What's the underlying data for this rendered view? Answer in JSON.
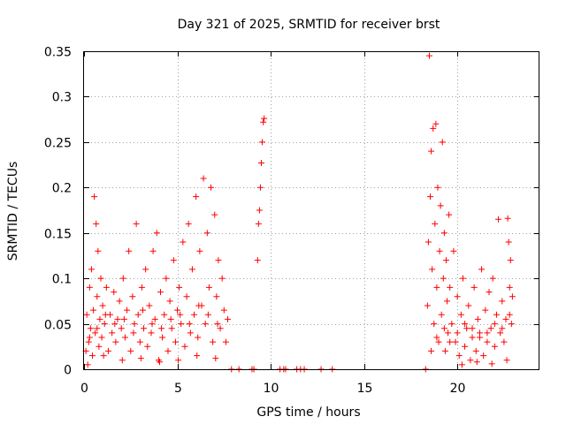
{
  "chart_data": {
    "type": "scatter",
    "title": "Day 321 of 2025, SRMTID for receiver brst",
    "xlabel": "GPS time / hours",
    "ylabel": "SRMTID / TECUs",
    "xlim": [
      0,
      24.4
    ],
    "ylim": [
      0,
      0.35
    ],
    "grid": true,
    "marker": "plus",
    "series_color": "#ff0000",
    "x_ticks": [
      0,
      5,
      10,
      15,
      20
    ],
    "x_tick_labels": [
      "0",
      "5",
      "10",
      "15",
      "20"
    ],
    "y_ticks": [
      0,
      0.05,
      0.1,
      0.15,
      0.2,
      0.25,
      0.3,
      0.35
    ],
    "y_tick_labels": [
      "0",
      "0.05",
      "0.1",
      "0.15",
      "0.2",
      "0.25",
      "0.3",
      "0.35"
    ],
    "series": [
      {
        "name": "SRMTID",
        "points": [
          [
            0.1,
            0.02
          ],
          [
            0.15,
            0.06
          ],
          [
            0.2,
            0.005
          ],
          [
            0.25,
            0.03
          ],
          [
            0.3,
            0.09
          ],
          [
            0.35,
            0.045
          ],
          [
            0.4,
            0.11
          ],
          [
            0.45,
            0.015
          ],
          [
            0.5,
            0.065
          ],
          [
            0.55,
            0.19
          ],
          [
            0.6,
            0.04
          ],
          [
            0.65,
            0.16
          ],
          [
            0.7,
            0.08
          ],
          [
            0.75,
            0.13
          ],
          [
            0.8,
            0.025
          ],
          [
            0.85,
            0.055
          ],
          [
            0.9,
            0.1
          ],
          [
            0.95,
            0.035
          ],
          [
            1.0,
            0.07
          ],
          [
            1.1,
            0.05
          ],
          [
            1.2,
            0.09
          ],
          [
            1.3,
            0.02
          ],
          [
            1.4,
            0.06
          ],
          [
            1.5,
            0.04
          ],
          [
            1.6,
            0.085
          ],
          [
            1.7,
            0.03
          ],
          [
            1.8,
            0.055
          ],
          [
            1.9,
            0.075
          ],
          [
            2.0,
            0.045
          ],
          [
            2.1,
            0.1
          ],
          [
            2.2,
            0.035
          ],
          [
            2.3,
            0.065
          ],
          [
            2.4,
            0.13
          ],
          [
            2.5,
            0.02
          ],
          [
            2.6,
            0.08
          ],
          [
            2.7,
            0.05
          ],
          [
            2.8,
            0.16
          ],
          [
            2.9,
            0.06
          ],
          [
            3.0,
            0.03
          ],
          [
            3.1,
            0.09
          ],
          [
            3.2,
            0.045
          ],
          [
            3.3,
            0.11
          ],
          [
            3.4,
            0.025
          ],
          [
            3.5,
            0.07
          ],
          [
            3.6,
            0.04
          ],
          [
            3.7,
            0.13
          ],
          [
            3.8,
            0.055
          ],
          [
            3.9,
            0.15
          ],
          [
            4.0,
            0.01
          ],
          [
            4.1,
            0.085
          ],
          [
            4.2,
            0.035
          ],
          [
            4.3,
            0.06
          ],
          [
            4.4,
            0.1
          ],
          [
            4.5,
            0.02
          ],
          [
            4.6,
            0.075
          ],
          [
            4.7,
            0.045
          ],
          [
            4.8,
            0.12
          ],
          [
            4.9,
            0.03
          ],
          [
            5.0,
            0.065
          ],
          [
            5.1,
            0.09
          ],
          [
            5.2,
            0.05
          ],
          [
            5.3,
            0.14
          ],
          [
            5.4,
            0.025
          ],
          [
            5.5,
            0.08
          ],
          [
            5.6,
            0.16
          ],
          [
            5.7,
            0.04
          ],
          [
            5.8,
            0.11
          ],
          [
            5.9,
            0.06
          ],
          [
            6.0,
            0.19
          ],
          [
            6.1,
            0.035
          ],
          [
            6.2,
            0.13
          ],
          [
            6.3,
            0.07
          ],
          [
            6.4,
            0.21
          ],
          [
            6.5,
            0.05
          ],
          [
            6.6,
            0.15
          ],
          [
            6.7,
            0.09
          ],
          [
            6.8,
            0.2
          ],
          [
            6.9,
            0.03
          ],
          [
            7.0,
            0.17
          ],
          [
            7.1,
            0.08
          ],
          [
            7.2,
            0.12
          ],
          [
            7.3,
            0.045
          ],
          [
            7.4,
            0.1
          ],
          [
            7.5,
            0.065
          ],
          [
            7.6,
            0.03
          ],
          [
            7.7,
            0.055
          ],
          [
            0.3,
            0.035
          ],
          [
            0.7,
            0.045
          ],
          [
            1.15,
            0.06
          ],
          [
            1.65,
            0.05
          ],
          [
            2.15,
            0.055
          ],
          [
            2.65,
            0.04
          ],
          [
            3.15,
            0.065
          ],
          [
            3.65,
            0.05
          ],
          [
            4.15,
            0.045
          ],
          [
            4.65,
            0.055
          ],
          [
            5.15,
            0.06
          ],
          [
            5.65,
            0.05
          ],
          [
            6.15,
            0.07
          ],
          [
            6.65,
            0.06
          ],
          [
            7.15,
            0.05
          ],
          [
            1.05,
            0.015
          ],
          [
            2.05,
            0.01
          ],
          [
            3.05,
            0.012
          ],
          [
            4.05,
            0.008
          ],
          [
            5.05,
            0.01
          ],
          [
            6.05,
            0.015
          ],
          [
            7.05,
            0.012
          ],
          [
            7.9,
            0.0
          ],
          [
            8.3,
            0.0
          ],
          [
            9.0,
            0.0
          ],
          [
            9.1,
            0.0
          ],
          [
            9.3,
            0.12
          ],
          [
            9.35,
            0.16
          ],
          [
            9.4,
            0.175
          ],
          [
            9.45,
            0.2
          ],
          [
            9.5,
            0.227
          ],
          [
            9.55,
            0.25
          ],
          [
            9.6,
            0.272
          ],
          [
            9.65,
            0.276
          ],
          [
            10.5,
            0.0
          ],
          [
            10.7,
            0.0
          ],
          [
            10.8,
            0.0
          ],
          [
            11.4,
            0.0
          ],
          [
            11.6,
            0.0
          ],
          [
            11.8,
            0.0
          ],
          [
            12.7,
            0.0
          ],
          [
            13.3,
            0.0
          ],
          [
            18.3,
            0.0
          ],
          [
            18.4,
            0.07
          ],
          [
            18.45,
            0.14
          ],
          [
            18.5,
            0.345
          ],
          [
            18.55,
            0.19
          ],
          [
            18.6,
            0.24
          ],
          [
            18.65,
            0.11
          ],
          [
            18.7,
            0.265
          ],
          [
            18.75,
            0.05
          ],
          [
            18.8,
            0.16
          ],
          [
            18.85,
            0.27
          ],
          [
            18.9,
            0.09
          ],
          [
            18.95,
            0.2
          ],
          [
            19.0,
            0.03
          ],
          [
            19.05,
            0.13
          ],
          [
            19.1,
            0.18
          ],
          [
            19.15,
            0.06
          ],
          [
            19.2,
            0.25
          ],
          [
            19.25,
            0.1
          ],
          [
            19.3,
            0.15
          ],
          [
            19.35,
            0.02
          ],
          [
            19.4,
            0.12
          ],
          [
            19.45,
            0.075
          ],
          [
            19.5,
            0.04
          ],
          [
            19.55,
            0.17
          ],
          [
            19.6,
            0.09
          ],
          [
            19.7,
            0.05
          ],
          [
            19.8,
            0.13
          ],
          [
            19.9,
            0.03
          ],
          [
            20.0,
            0.08
          ],
          [
            20.1,
            0.015
          ],
          [
            20.2,
            0.06
          ],
          [
            20.3,
            0.1
          ],
          [
            20.4,
            0.025
          ],
          [
            20.5,
            0.045
          ],
          [
            20.6,
            0.07
          ],
          [
            20.7,
            0.01
          ],
          [
            20.8,
            0.035
          ],
          [
            20.9,
            0.09
          ],
          [
            21.0,
            0.02
          ],
          [
            21.1,
            0.055
          ],
          [
            21.2,
            0.04
          ],
          [
            21.3,
            0.11
          ],
          [
            21.4,
            0.015
          ],
          [
            21.5,
            0.065
          ],
          [
            21.6,
            0.03
          ],
          [
            21.7,
            0.085
          ],
          [
            21.8,
            0.045
          ],
          [
            21.9,
            0.1
          ],
          [
            22.0,
            0.025
          ],
          [
            22.1,
            0.06
          ],
          [
            22.2,
            0.165
          ],
          [
            22.3,
            0.04
          ],
          [
            22.4,
            0.075
          ],
          [
            22.5,
            0.03
          ],
          [
            22.6,
            0.055
          ],
          [
            22.7,
            0.166
          ],
          [
            22.75,
            0.14
          ],
          [
            22.8,
            0.09
          ],
          [
            22.85,
            0.12
          ],
          [
            22.9,
            0.05
          ],
          [
            22.95,
            0.08
          ],
          [
            18.6,
            0.02
          ],
          [
            18.9,
            0.035
          ],
          [
            19.3,
            0.045
          ],
          [
            19.6,
            0.03
          ],
          [
            20.0,
            0.04
          ],
          [
            20.4,
            0.05
          ],
          [
            20.8,
            0.045
          ],
          [
            21.2,
            0.035
          ],
          [
            21.6,
            0.04
          ],
          [
            22.0,
            0.05
          ],
          [
            22.4,
            0.045
          ],
          [
            22.8,
            0.06
          ],
          [
            20.25,
            0.005
          ],
          [
            21.05,
            0.008
          ],
          [
            21.85,
            0.006
          ],
          [
            22.65,
            0.01
          ]
        ]
      }
    ]
  }
}
